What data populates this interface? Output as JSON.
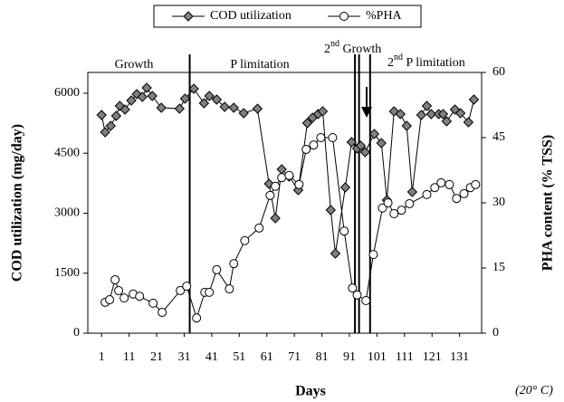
{
  "chart_data": {
    "type": "line",
    "xlabel": "Days",
    "ylabel": "COD utilization (mg/day)",
    "y2label": "PHA content (% TSS)",
    "footnote": "(20° C)",
    "xlim": [
      -4,
      139
    ],
    "xticks": [
      1,
      11,
      21,
      31,
      41,
      51,
      61,
      71,
      81,
      91,
      101,
      111,
      121,
      131
    ],
    "ylim": [
      0,
      6520
    ],
    "yticks": [
      0,
      1500,
      3000,
      4500,
      6000
    ],
    "y2lim": [
      0,
      60
    ],
    "y2ticks": [
      0,
      15,
      30,
      45,
      60
    ],
    "grid": false,
    "legend": "top",
    "phase_lines": [
      33,
      93,
      94.5,
      98.5
    ],
    "annotations": [
      {
        "text": "Growth"
      },
      {
        "text": "P limitation"
      },
      {
        "prefix": "2",
        "sup": "nd",
        "text": " Growth"
      },
      {
        "prefix": "2",
        "sup": "nd",
        "text": " P limitation"
      }
    ],
    "series": [
      {
        "name": "COD utilization",
        "color": "#000000",
        "marker": "diamond",
        "marker_fill": "#808080",
        "x": [
          1,
          2.3,
          4.3,
          6.3,
          7.6,
          9.5,
          11.8,
          13.8,
          15.8,
          17.4,
          19.4,
          22.7,
          29.3,
          31.3,
          34.5,
          38.2,
          40.1,
          42.8,
          45.7,
          49,
          52.6,
          57.6,
          61.8,
          64.1,
          66.4,
          69.1,
          72.4,
          75.7,
          77.6,
          79.6,
          81.3,
          84.2,
          85.9,
          89.5,
          91.8,
          93.8,
          95.1,
          96.7,
          100,
          102.6,
          104.6,
          107.2,
          109.5,
          111.8,
          113.8,
          117.1,
          119.1,
          120.7,
          123.4,
          125,
          126.3,
          129.3,
          131.3,
          134.2,
          136.2
        ],
        "values": [
          5456,
          5026,
          5184,
          5433,
          5682,
          5592,
          5818,
          5977,
          5909,
          6135,
          5931,
          5637,
          5614,
          5864,
          6112,
          5750,
          5931,
          5841,
          5660,
          5637,
          5501,
          5614,
          3735,
          2875,
          4097,
          3916,
          3577,
          5252,
          5388,
          5479,
          5547,
          3079,
          1992,
          3645,
          4777,
          4618,
          4686,
          4528,
          4980,
          4754,
          3328,
          5547,
          5479,
          5184,
          3531,
          5456,
          5682,
          5479,
          5479,
          5479,
          5297,
          5592,
          5501,
          5275,
          5841
        ]
      },
      {
        "name": "%PHA",
        "color": "#000000",
        "marker": "circle",
        "marker_fill": "#ffffff",
        "axis": "y2",
        "x": [
          2.3,
          3.9,
          5.9,
          7.2,
          9.2,
          12.5,
          14.8,
          19.7,
          23,
          29.6,
          31.9,
          35.5,
          38.5,
          40.1,
          42.8,
          47.4,
          49,
          53,
          58.2,
          62.2,
          64.1,
          66.4,
          69.1,
          72.7,
          75.3,
          78,
          80.6,
          84.9,
          89.1,
          92.1,
          93.8,
          97,
          99.7,
          103,
          105,
          107.2,
          109.9,
          112.8,
          119.1,
          122,
          124.3,
          127.3,
          129.9,
          132.6,
          134.9,
          136.8
        ],
        "values": [
          7.1,
          7.7,
          12.3,
          9.8,
          8.1,
          9.0,
          8.5,
          6.9,
          4.8,
          9.8,
          10.8,
          3.5,
          9.4,
          9.4,
          14.6,
          10.2,
          16,
          21.3,
          24.2,
          31.7,
          33.8,
          35.8,
          36.3,
          34.2,
          42.3,
          43.3,
          45,
          45,
          23.5,
          10.4,
          8.8,
          7.5,
          18.1,
          28.8,
          30,
          27.5,
          28.3,
          29.8,
          31.9,
          33.5,
          34.6,
          34.2,
          31,
          32.1,
          33.5,
          34.2
        ]
      }
    ]
  }
}
